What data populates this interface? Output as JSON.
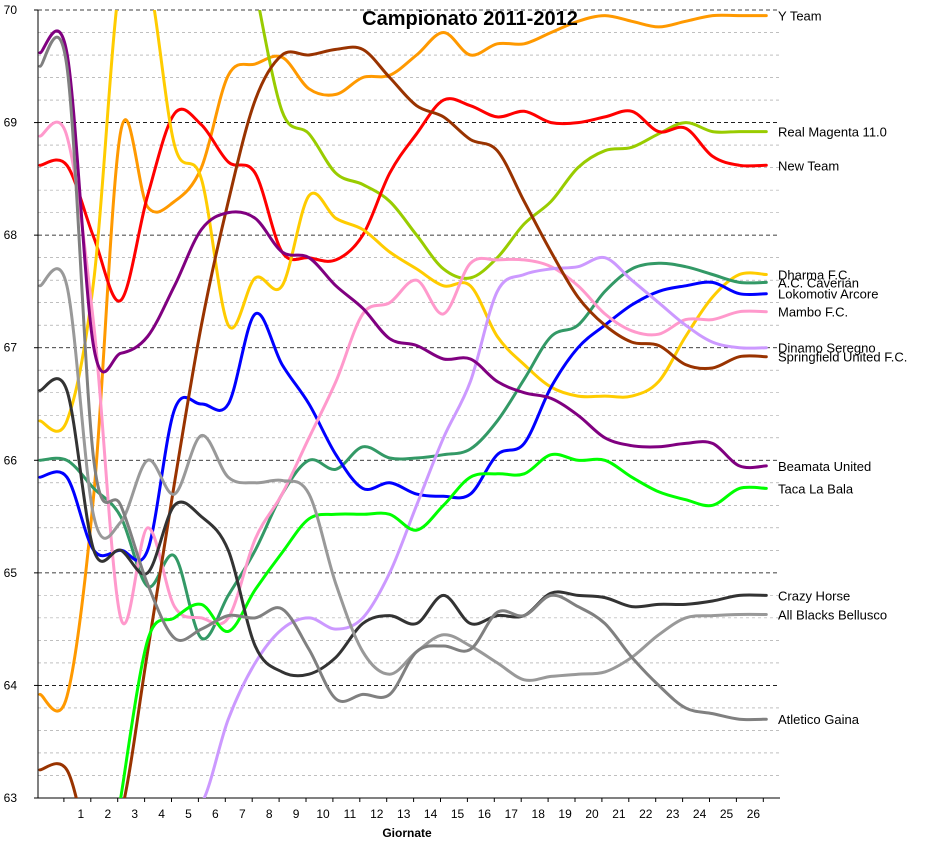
{
  "chart_data": {
    "type": "line",
    "title": "Campionato 2011-2012",
    "xlabel": "Giornate",
    "ylabel": "",
    "categories": [
      "",
      "1",
      "2",
      "3",
      "4",
      "5",
      "6",
      "7",
      "8",
      "9",
      "10",
      "11",
      "12",
      "13",
      "14",
      "15",
      "16",
      "17",
      "18",
      "19",
      "20",
      "21",
      "22",
      "23",
      "24",
      "25",
      "26",
      ""
    ],
    "ylim": [
      63,
      70
    ],
    "yticks": [
      63,
      64,
      65,
      66,
      67,
      68,
      69,
      70
    ],
    "major_gridlines": true,
    "minor_gridlines": true,
    "legend": "labels at right end of each line",
    "series": [
      {
        "name": "Y Team",
        "color": "#ff9900",
        "values": [
          63.92,
          63.9,
          65.7,
          68.92,
          68.25,
          68.3,
          68.6,
          69.42,
          69.52,
          69.58,
          69.3,
          69.25,
          69.4,
          69.42,
          69.6,
          69.8,
          69.6,
          69.7,
          69.7,
          69.8,
          69.9,
          69.95,
          69.9,
          69.85,
          69.9,
          69.95,
          69.95,
          69.95
        ]
      },
      {
        "name": "Real Magenta 11.0",
        "color": "#99cc00",
        "values": [
          null,
          null,
          null,
          null,
          null,
          null,
          null,
          null,
          70.2,
          69.1,
          68.9,
          68.55,
          68.45,
          68.3,
          68.0,
          67.7,
          67.62,
          67.8,
          68.1,
          68.3,
          68.6,
          68.75,
          68.78,
          68.9,
          69.0,
          68.92,
          68.92,
          68.92
        ]
      },
      {
        "name": "New Team",
        "color": "#ff0000",
        "values": [
          68.62,
          68.62,
          67.98,
          67.42,
          68.35,
          69.08,
          68.98,
          68.65,
          68.55,
          67.85,
          67.8,
          67.78,
          68.0,
          68.55,
          68.9,
          69.2,
          69.15,
          69.05,
          69.1,
          69.0,
          69.0,
          69.05,
          69.1,
          68.92,
          68.95,
          68.7,
          68.62,
          68.62
        ]
      },
      {
        "name": "Dharma F.C.",
        "color": "#ffcc00",
        "values": [
          66.35,
          66.35,
          67.6,
          70.3,
          70.3,
          68.8,
          68.5,
          67.2,
          67.62,
          67.55,
          68.35,
          68.15,
          68.05,
          67.85,
          67.7,
          67.55,
          67.55,
          67.1,
          66.85,
          66.65,
          66.57,
          66.57,
          66.57,
          66.7,
          67.1,
          67.45,
          67.65,
          67.65
        ]
      },
      {
        "name": "A.C. Caverian",
        "color": "#339966",
        "values": [
          66.0,
          66.0,
          65.75,
          65.5,
          64.88,
          65.15,
          64.42,
          64.8,
          65.2,
          65.7,
          66.0,
          65.92,
          66.12,
          66.02,
          66.02,
          66.05,
          66.1,
          66.35,
          66.72,
          67.1,
          67.2,
          67.5,
          67.7,
          67.75,
          67.72,
          67.65,
          67.58,
          67.58
        ]
      },
      {
        "name": "Lokomotiv Arcore",
        "color": "#0000ff",
        "values": [
          65.85,
          65.85,
          65.2,
          65.2,
          65.2,
          66.45,
          66.5,
          66.5,
          67.3,
          66.85,
          66.5,
          66.05,
          65.75,
          65.8,
          65.7,
          65.68,
          65.7,
          66.05,
          66.15,
          66.65,
          67.0,
          67.2,
          67.38,
          67.5,
          67.55,
          67.58,
          67.48,
          67.48
        ]
      },
      {
        "name": "Mambo F.C.",
        "color": "#ff99cc",
        "values": [
          68.88,
          68.88,
          67.2,
          64.6,
          65.4,
          64.7,
          64.6,
          64.6,
          65.3,
          65.7,
          66.2,
          66.7,
          67.3,
          67.4,
          67.6,
          67.3,
          67.75,
          67.78,
          67.78,
          67.72,
          67.55,
          67.3,
          67.15,
          67.12,
          67.25,
          67.25,
          67.32,
          67.32
        ]
      },
      {
        "name": "Dinamo Seregno",
        "color": "#cc99ff",
        "values": [
          null,
          null,
          null,
          null,
          null,
          62.95,
          62.95,
          63.7,
          64.2,
          64.5,
          64.6,
          64.5,
          64.6,
          65.0,
          65.6,
          66.2,
          66.7,
          67.5,
          67.65,
          67.7,
          67.72,
          67.8,
          67.6,
          67.4,
          67.2,
          67.05,
          67.0,
          67.0
        ]
      },
      {
        "name": "Springfield United F.C.",
        "color": "#993300",
        "values": [
          63.25,
          63.25,
          62.5,
          62.85,
          64.3,
          65.8,
          67.2,
          68.3,
          69.2,
          69.6,
          69.6,
          69.65,
          69.65,
          69.4,
          69.15,
          69.05,
          68.85,
          68.75,
          68.3,
          67.85,
          67.45,
          67.2,
          67.05,
          67.02,
          66.85,
          66.82,
          66.92,
          66.92
        ]
      },
      {
        "name": "Beamata United",
        "color": "#800080",
        "values": [
          69.62,
          69.62,
          67.0,
          66.95,
          67.1,
          67.55,
          68.05,
          68.2,
          68.15,
          67.85,
          67.8,
          67.55,
          67.35,
          67.08,
          67.02,
          66.9,
          66.9,
          66.7,
          66.6,
          66.55,
          66.4,
          66.2,
          66.13,
          66.12,
          66.15,
          66.15,
          65.95,
          65.95
        ]
      },
      {
        "name": "Taca La Bala",
        "color": "#00ff00",
        "values": [
          null,
          null,
          null,
          63.0,
          64.4,
          64.6,
          64.72,
          64.48,
          64.85,
          65.18,
          65.48,
          65.52,
          65.52,
          65.52,
          65.38,
          65.6,
          65.85,
          65.88,
          65.88,
          66.05,
          66.0,
          66.0,
          65.85,
          65.72,
          65.65,
          65.6,
          65.75,
          65.75
        ]
      },
      {
        "name": "Crazy Horse",
        "color": "#333333",
        "values": [
          66.62,
          66.62,
          65.2,
          65.2,
          65.0,
          65.6,
          65.5,
          65.2,
          64.35,
          64.12,
          64.1,
          64.25,
          64.55,
          64.62,
          64.55,
          64.8,
          64.55,
          64.62,
          64.62,
          64.82,
          64.8,
          64.78,
          64.7,
          64.72,
          64.72,
          64.75,
          64.8,
          64.8
        ]
      },
      {
        "name": "All Blacks Bellusco",
        "color": "#999999",
        "values": [
          67.55,
          67.55,
          65.5,
          65.45,
          66.0,
          65.7,
          66.22,
          65.85,
          65.8,
          65.82,
          65.7,
          64.9,
          64.3,
          64.1,
          64.3,
          64.45,
          64.35,
          64.2,
          64.05,
          64.08,
          64.1,
          64.12,
          64.25,
          64.45,
          64.6,
          64.62,
          64.63,
          64.63
        ]
      },
      {
        "name": "Atletico Gaina",
        "color": "#808080",
        "values": [
          69.5,
          69.5,
          66.0,
          65.6,
          64.9,
          64.42,
          64.5,
          64.62,
          64.6,
          64.68,
          64.32,
          63.88,
          63.92,
          63.92,
          64.3,
          64.35,
          64.32,
          64.65,
          64.62,
          64.8,
          64.7,
          64.55,
          64.25,
          64.0,
          63.8,
          63.75,
          63.7,
          63.7
        ]
      }
    ]
  }
}
